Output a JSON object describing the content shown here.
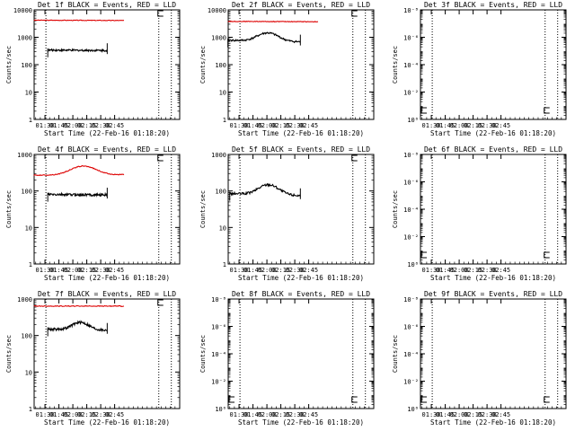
{
  "colors": {
    "events": "#000000",
    "lld": "#dd0000",
    "frame": "#000000",
    "background": "#ffffff"
  },
  "chart_data": [
    {
      "type": "line",
      "title": "Det 1f BLACK = Events, RED = LLD",
      "ylabel": "Counts/sec",
      "xlabel": "Start Time (22-Feb-16 01:18:20)",
      "scale": "log",
      "ylim": [
        1,
        10000
      ],
      "y_ticks": [
        "1",
        "10",
        "100",
        "1000",
        "10000"
      ],
      "x_ticks": [
        "01:30",
        "01:45",
        "02:00",
        "02:15",
        "02:30",
        "02:45"
      ],
      "series": [
        {
          "name": "LLD",
          "color": "lld",
          "shape": "flat",
          "x_range": [
            "01:18",
            "02:55"
          ],
          "y_start": 4200,
          "y_peak": 4200,
          "y_end": 4100
        },
        {
          "name": "Events",
          "color": "events",
          "shape": "flat",
          "x_range": [
            "01:33",
            "02:37"
          ],
          "y_start": 340,
          "y_peak": 360,
          "y_end": 330
        }
      ]
    },
    {
      "type": "line",
      "title": "Det 2f BLACK = Events, RED = LLD",
      "ylabel": "Counts/sec",
      "xlabel": "Start Time (22-Feb-16 01:18:20)",
      "scale": "log",
      "ylim": [
        1,
        10000
      ],
      "y_ticks": [
        "1",
        "10",
        "100",
        "1000",
        "10000"
      ],
      "x_ticks": [
        "01:30",
        "01:45",
        "02:00",
        "02:15",
        "02:30",
        "02:45"
      ],
      "series": [
        {
          "name": "LLD",
          "color": "lld",
          "shape": "flat",
          "x_range": [
            "01:18",
            "02:55"
          ],
          "y_start": 3800,
          "y_peak": 3800,
          "y_end": 3700
        },
        {
          "name": "Events",
          "color": "events",
          "shape": "hump",
          "x_range": [
            "01:18",
            "02:36"
          ],
          "y_start": 780,
          "y_peak": 1450,
          "y_end": 680
        }
      ]
    },
    {
      "type": "line",
      "title": "Det 3f BLACK = Events, RED = LLD",
      "ylabel": "Counts/sec",
      "xlabel": "Start Time (22-Feb-16 01:18:20)",
      "scale": "log",
      "ylim": [
        1,
        1e-08
      ],
      "y_ticks": [
        "10⁰",
        "10⁻²",
        "10⁻⁴",
        "10⁻⁶",
        "10⁻⁸"
      ],
      "x_ticks": [
        "01:30",
        "01:45",
        "02:00",
        "02:15",
        "02:30",
        "02:45"
      ],
      "series": []
    },
    {
      "type": "line",
      "title": "Det 4f BLACK = Events, RED = LLD",
      "ylabel": "Counts/sec",
      "xlabel": "Start Time (22-Feb-16 01:18:20)",
      "scale": "log",
      "ylim": [
        1,
        1000
      ],
      "y_ticks": [
        "1",
        "10",
        "100",
        "1000"
      ],
      "x_ticks": [
        "01:30",
        "01:45",
        "02:00",
        "02:15",
        "02:30",
        "02:45"
      ],
      "series": [
        {
          "name": "LLD",
          "color": "lld",
          "shape": "hump",
          "x_range": [
            "01:18",
            "02:55"
          ],
          "y_start": 270,
          "y_peak": 480,
          "y_end": 280
        },
        {
          "name": "Events",
          "color": "events",
          "shape": "flat",
          "x_range": [
            "01:33",
            "02:37"
          ],
          "y_start": 80,
          "y_peak": 80,
          "y_end": 78
        }
      ]
    },
    {
      "type": "line",
      "title": "Det 5f BLACK = Events, RED = LLD",
      "ylabel": "Counts/sec",
      "xlabel": "Start Time (22-Feb-16 01:18:20)",
      "scale": "log",
      "ylim": [
        1,
        1000
      ],
      "y_ticks": [
        "1",
        "10",
        "100",
        "1000"
      ],
      "x_ticks": [
        "01:30",
        "01:45",
        "02:00",
        "02:15",
        "02:30",
        "02:45"
      ],
      "series": [
        {
          "name": "Events",
          "color": "events",
          "shape": "hump",
          "x_range": [
            "01:20",
            "02:36"
          ],
          "y_start": 85,
          "y_peak": 150,
          "y_end": 75
        }
      ]
    },
    {
      "type": "line",
      "title": "Det 6f BLACK = Events, RED = LLD",
      "ylabel": "Counts/sec",
      "xlabel": "Start Time (22-Feb-16 01:18:20)",
      "scale": "log",
      "ylim": [
        1,
        1e-08
      ],
      "y_ticks": [
        "10⁰",
        "10⁻²",
        "10⁻⁴",
        "10⁻⁶",
        "10⁻⁸"
      ],
      "x_ticks": [
        "01:30",
        "01:45",
        "02:00",
        "02:15",
        "02:30",
        "02:45"
      ],
      "series": []
    },
    {
      "type": "line",
      "title": "Det 7f BLACK = Events, RED = LLD",
      "ylabel": "Counts/sec",
      "xlabel": "Start Time (22-Feb-16 01:18:20)",
      "scale": "log",
      "ylim": [
        1,
        1000
      ],
      "y_ticks": [
        "1",
        "10",
        "100",
        "1000"
      ],
      "x_ticks": [
        "01:30",
        "01:45",
        "02:00",
        "02:15",
        "02:30",
        "02:45"
      ],
      "series": [
        {
          "name": "LLD",
          "color": "lld",
          "shape": "flat",
          "x_range": [
            "01:18",
            "02:55"
          ],
          "y_start": 640,
          "y_peak": 640,
          "y_end": 640
        },
        {
          "name": "Events",
          "color": "events",
          "shape": "hump",
          "x_range": [
            "01:33",
            "02:37"
          ],
          "y_start": 150,
          "y_peak": 230,
          "y_end": 140
        }
      ]
    },
    {
      "type": "line",
      "title": "Det 8f BLACK = Events, RED = LLD",
      "ylabel": "Counts/sec",
      "xlabel": "Start Time (22-Feb-16 01:18:20)",
      "scale": "log",
      "ylim": [
        1,
        1e-08
      ],
      "y_ticks": [
        "10⁰",
        "10⁻²",
        "10⁻⁴",
        "10⁻⁶",
        "10⁻⁸"
      ],
      "x_ticks": [
        "01:30",
        "01:45",
        "02:00",
        "02:15",
        "02:30",
        "02:45"
      ],
      "series": []
    },
    {
      "type": "line",
      "title": "Det 9f BLACK = Events, RED = LLD",
      "ylabel": "Counts/sec",
      "xlabel": "Start Time (22-Feb-16 01:18:20)",
      "scale": "log",
      "ylim": [
        1,
        1e-08
      ],
      "y_ticks": [
        "10⁰",
        "10⁻²",
        "10⁻⁴",
        "10⁻⁶",
        "10⁻⁸"
      ],
      "x_ticks": [
        "01:30",
        "01:45",
        "02:00",
        "02:15",
        "02:30",
        "02:45"
      ],
      "series": []
    }
  ]
}
